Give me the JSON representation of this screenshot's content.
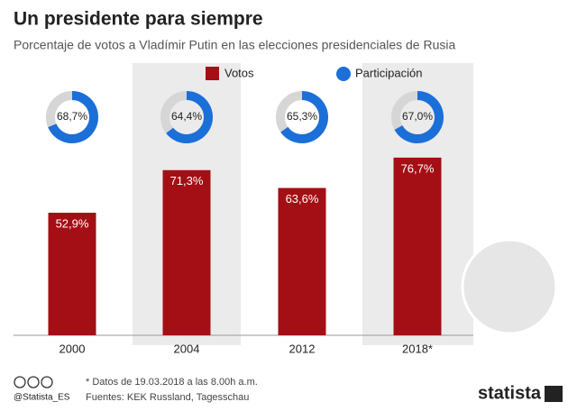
{
  "chart_data": {
    "type": "bar",
    "title": "Un presidente para siempre",
    "subtitle": "Porcentaje de votos a Vladímir Putin en las elecciones presidenciales de Rusia",
    "categories": [
      "2000",
      "2004",
      "2012",
      "2018*"
    ],
    "series": [
      {
        "name": "Votos",
        "color": "#a30f14",
        "values": [
          52.9,
          71.3,
          63.6,
          76.7
        ],
        "value_labels": [
          "52,9%",
          "71,3%",
          "63,6%",
          "76,7%"
        ]
      },
      {
        "name": "Participación",
        "color": "#1b6fd8",
        "type": "donut",
        "values": [
          68.7,
          64.4,
          65.3,
          67.0
        ],
        "value_labels": [
          "68,7%",
          "64,4%",
          "65,3%",
          "67,0%"
        ]
      }
    ],
    "footnote": "* Datos de 19.03.2018 a las 8.00h a.m.",
    "sources": "Fuentes: KEK Russland, Tagesschau",
    "credit": "@Statista_ES",
    "brand": "statista"
  }
}
